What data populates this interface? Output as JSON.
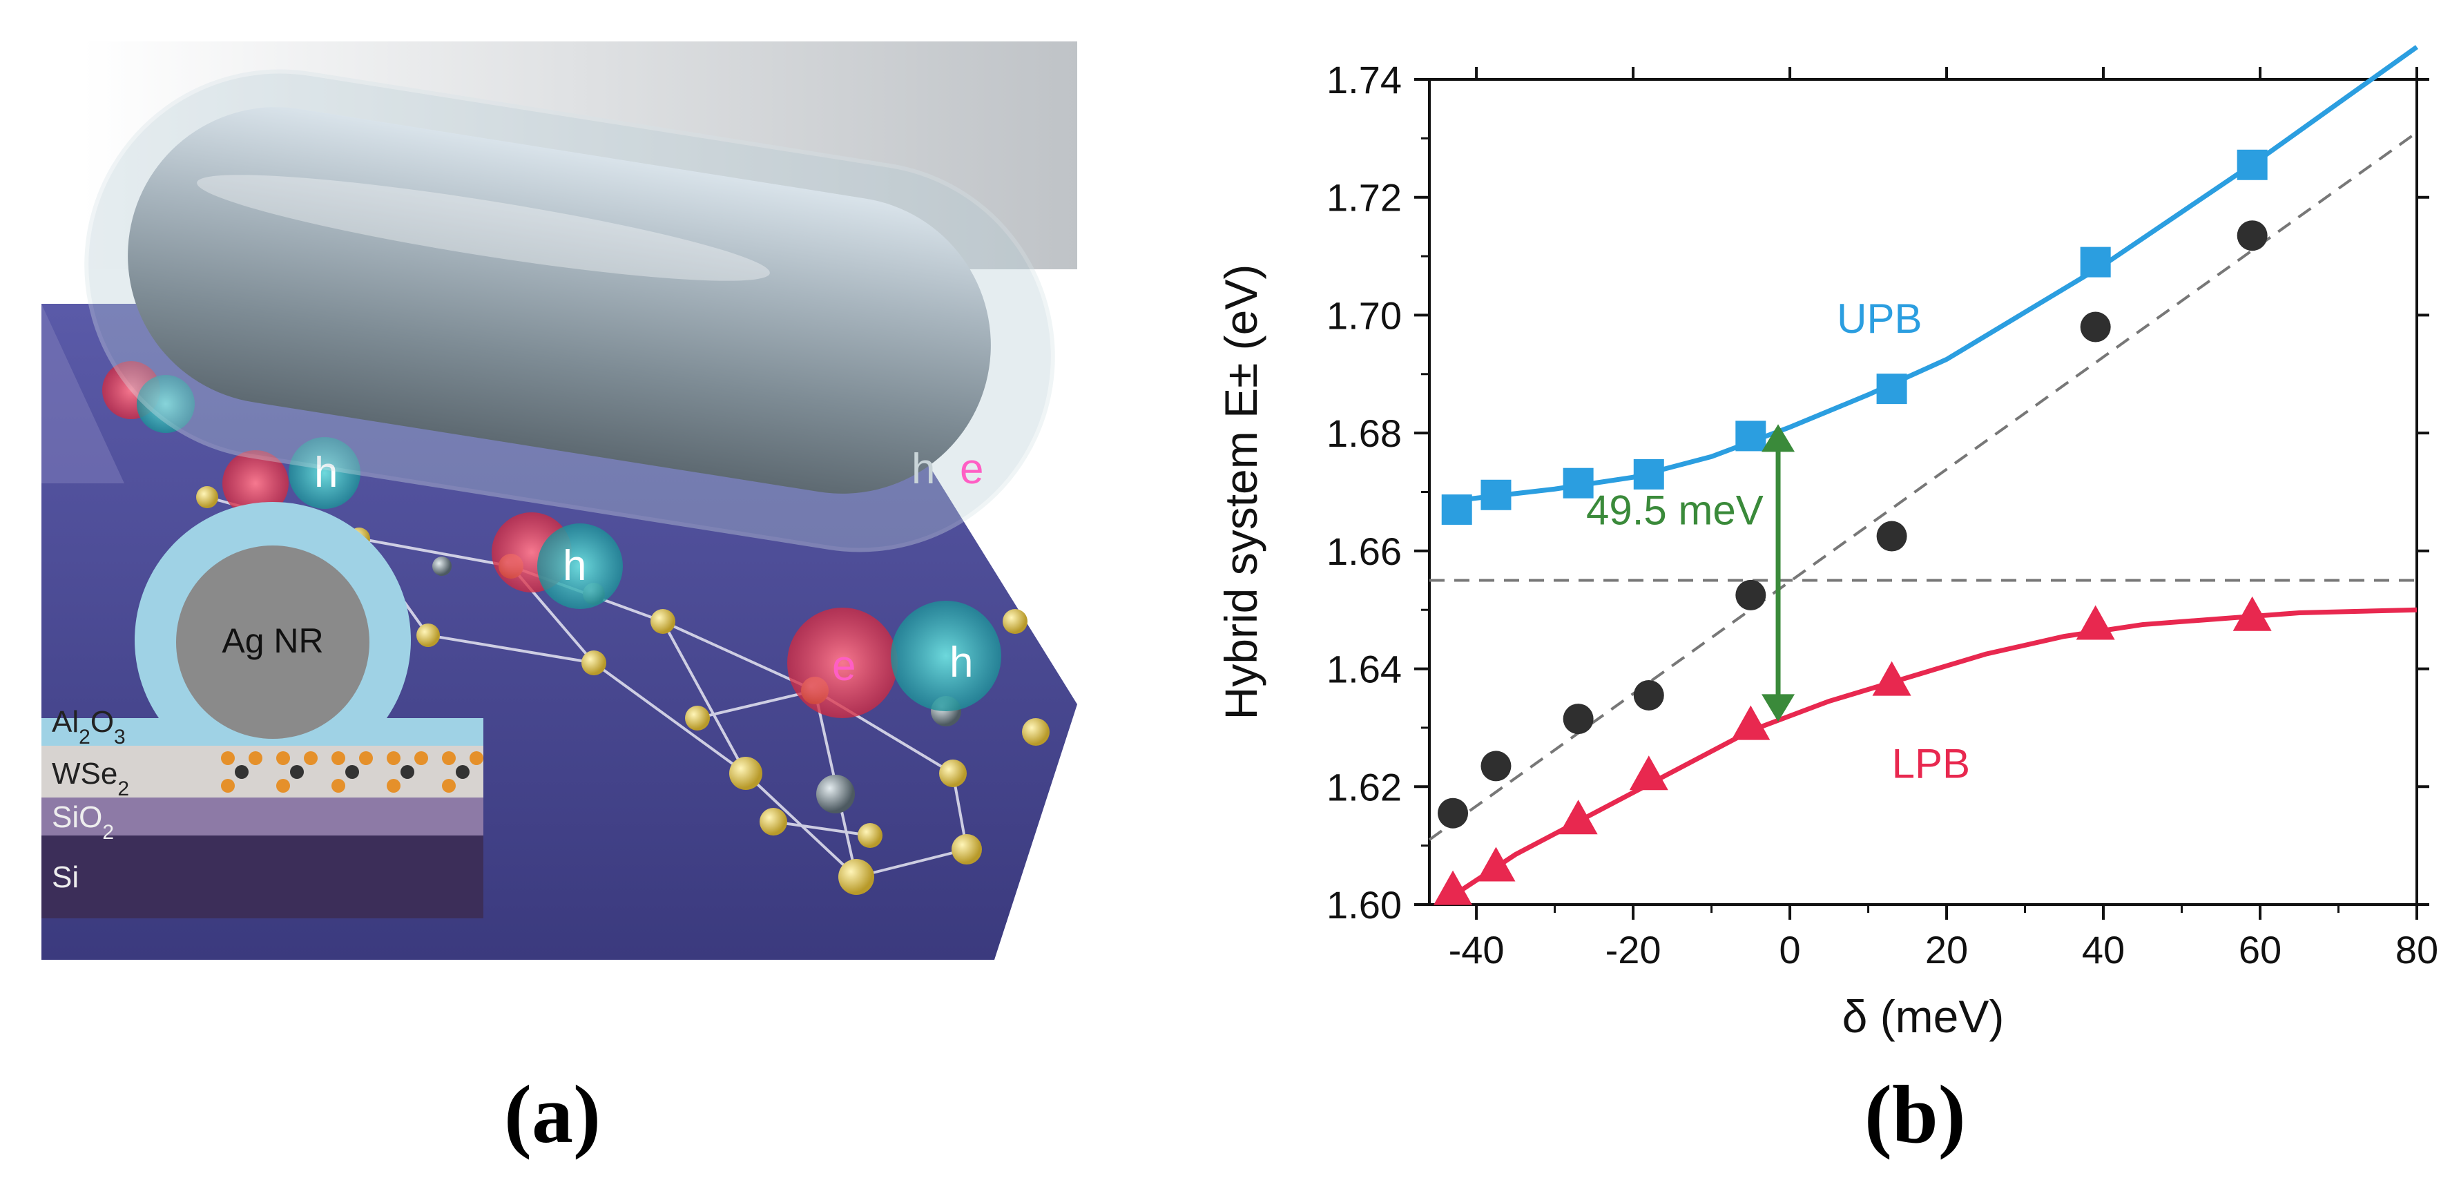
{
  "panel_a": {
    "label": "(a)",
    "layers": [
      "Al2O3",
      "WSe2",
      "SiO2",
      "Si"
    ],
    "nanorod_label": "Ag NR",
    "carrier_labels": {
      "electron": "e",
      "hole": "h"
    }
  },
  "panel_b": {
    "label": "(b)"
  },
  "chart_data": {
    "type": "scatter",
    "xlabel": "δ (meV)",
    "ylabel": "Hybrid system E± (eV)",
    "xlim": [
      -46,
      80
    ],
    "ylim": [
      1.6,
      1.74
    ],
    "xticks": [
      -40,
      -20,
      0,
      20,
      40,
      60,
      80
    ],
    "yticks": [
      1.6,
      1.62,
      1.64,
      1.66,
      1.68,
      1.7,
      1.72,
      1.74
    ],
    "x_tick_labels": [
      "-40",
      "-20",
      "0",
      "20",
      "40",
      "60",
      "80"
    ],
    "y_tick_labels": [
      "1.60",
      "1.62",
      "1.64",
      "1.66",
      "1.68",
      "1.70",
      "1.72",
      "1.74"
    ],
    "grid": false,
    "series": [
      {
        "name": "UPB",
        "marker": "square",
        "color": "#2b9ee0",
        "x": [
          -42.5,
          -37.5,
          -27,
          -18,
          -5,
          13,
          39,
          59
        ],
        "y": [
          1.667,
          1.6695,
          1.6715,
          1.673,
          1.6795,
          1.6875,
          1.709,
          1.7255
        ]
      },
      {
        "name": "LPB",
        "marker": "triangle",
        "color": "#e8284f",
        "x": [
          -43,
          -37.5,
          -27,
          -18,
          -5,
          13,
          39,
          59
        ],
        "y": [
          1.6025,
          1.6065,
          1.6145,
          1.622,
          1.6305,
          1.638,
          1.6475,
          1.649
        ]
      },
      {
        "name": "",
        "marker": "circle",
        "color": "#2f2f2f",
        "x": [
          -43,
          -37.5,
          -27,
          -18,
          -5,
          13,
          39,
          59
        ],
        "y": [
          1.6155,
          1.6235,
          1.6315,
          1.6355,
          1.6525,
          1.6625,
          1.698,
          1.7135
        ]
      }
    ],
    "fit_lines": [
      {
        "name": "UPB",
        "color": "#2b9ee0",
        "style": "solid",
        "x": [
          -43,
          -30,
          -20,
          -10,
          0,
          10,
          20,
          30,
          40,
          50,
          60,
          70,
          80
        ],
        "y": [
          1.6685,
          1.6705,
          1.6725,
          1.676,
          1.681,
          1.6865,
          1.6925,
          1.7005,
          1.7085,
          1.7175,
          1.7265,
          1.736,
          1.7455
        ]
      },
      {
        "name": "LPB",
        "color": "#e8284f",
        "style": "solid",
        "x": [
          -43,
          -35,
          -25,
          -15,
          -5,
          5,
          15,
          25,
          35,
          45,
          55,
          65,
          80
        ],
        "y": [
          1.6015,
          1.6085,
          1.6155,
          1.6225,
          1.6295,
          1.6345,
          1.6385,
          1.6425,
          1.6455,
          1.6475,
          1.6485,
          1.6495,
          1.65
        ]
      },
      {
        "name": "",
        "color": "#777777",
        "style": "dashed",
        "x": [
          -46,
          80
        ],
        "y": [
          1.611,
          1.731
        ]
      },
      {
        "name": "",
        "color": "#777777",
        "style": "dashed",
        "x": [
          -46,
          80
        ],
        "y": [
          1.655,
          1.655
        ]
      }
    ],
    "annotations": [
      {
        "text": "UPB",
        "x": 6,
        "y": 1.697,
        "color": "#2b9ee0"
      },
      {
        "text": "LPB",
        "x": 13,
        "y": 1.6215,
        "color": "#e8284f"
      },
      {
        "text": "49.5 meV",
        "x": -26,
        "y": 1.6645,
        "color": "#3a8a3a"
      }
    ],
    "double_arrow": {
      "x": -1.5,
      "y1": 1.6815,
      "y2": 1.631,
      "color": "#3a8a3a"
    }
  }
}
